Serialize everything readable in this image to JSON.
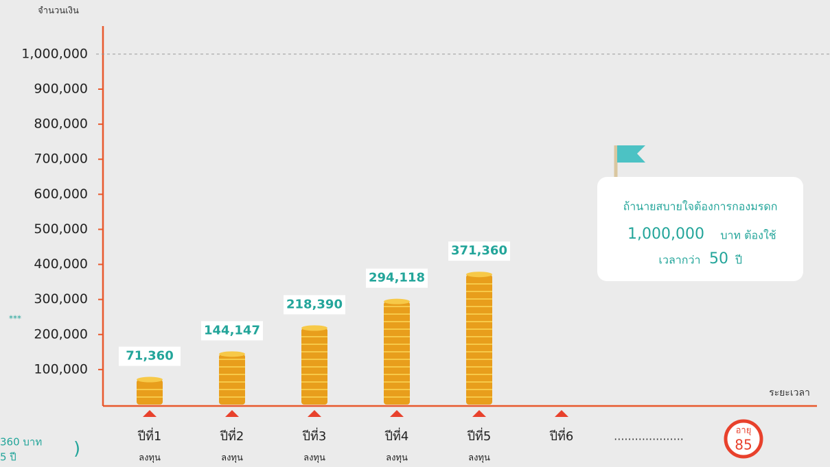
{
  "chart_data": {
    "type": "bar",
    "y_axis_label": "จำนวนเงิน",
    "x_axis_label": "ระยะเวลา",
    "categories": [
      "ปีที่1",
      "ปีที่2",
      "ปีที่3",
      "ปีที่4",
      "ปีที่5",
      "ปีที่6"
    ],
    "sublabels": [
      "ลงทุน",
      "ลงทุน",
      "ลงทุน",
      "ลงทุน",
      "ลงทุน",
      null
    ],
    "values": [
      71360,
      144147,
      218390,
      294118,
      371360,
      null
    ],
    "value_labels": [
      "71,360",
      "144,147",
      "218,390",
      "294,118",
      "371,360",
      null
    ],
    "color": "#e89e1c",
    "ylim": [
      0,
      1080000
    ],
    "yticks": [
      {
        "value": 100000,
        "label": "100,000"
      },
      {
        "value": 200000,
        "label": "200,000"
      },
      {
        "value": 300000,
        "label": "300,000"
      },
      {
        "value": 400000,
        "label": "400,000"
      },
      {
        "value": 500000,
        "label": "500,000"
      },
      {
        "value": 600000,
        "label": "600,000"
      },
      {
        "value": 700000,
        "label": "700,000"
      },
      {
        "value": 800000,
        "label": "800,000"
      },
      {
        "value": 900000,
        "label": "900,000"
      },
      {
        "value": 1000000,
        "label": "1,000,000"
      }
    ],
    "callout": {
      "line1": "ถ้านายสบายใจต้องการกองมรดก",
      "amount": "1,000,000",
      "unit": "บาท ต้องใช้",
      "prefix": "เวลากว่า",
      "years": "50",
      "year_unit": "ปี"
    },
    "ellipsis": "....................",
    "age_label": "อายุ",
    "age": "85",
    "fragments": {
      "stars": "***",
      "amount": "360 บาท",
      "years": "5 ปี",
      "paren": ")"
    }
  }
}
